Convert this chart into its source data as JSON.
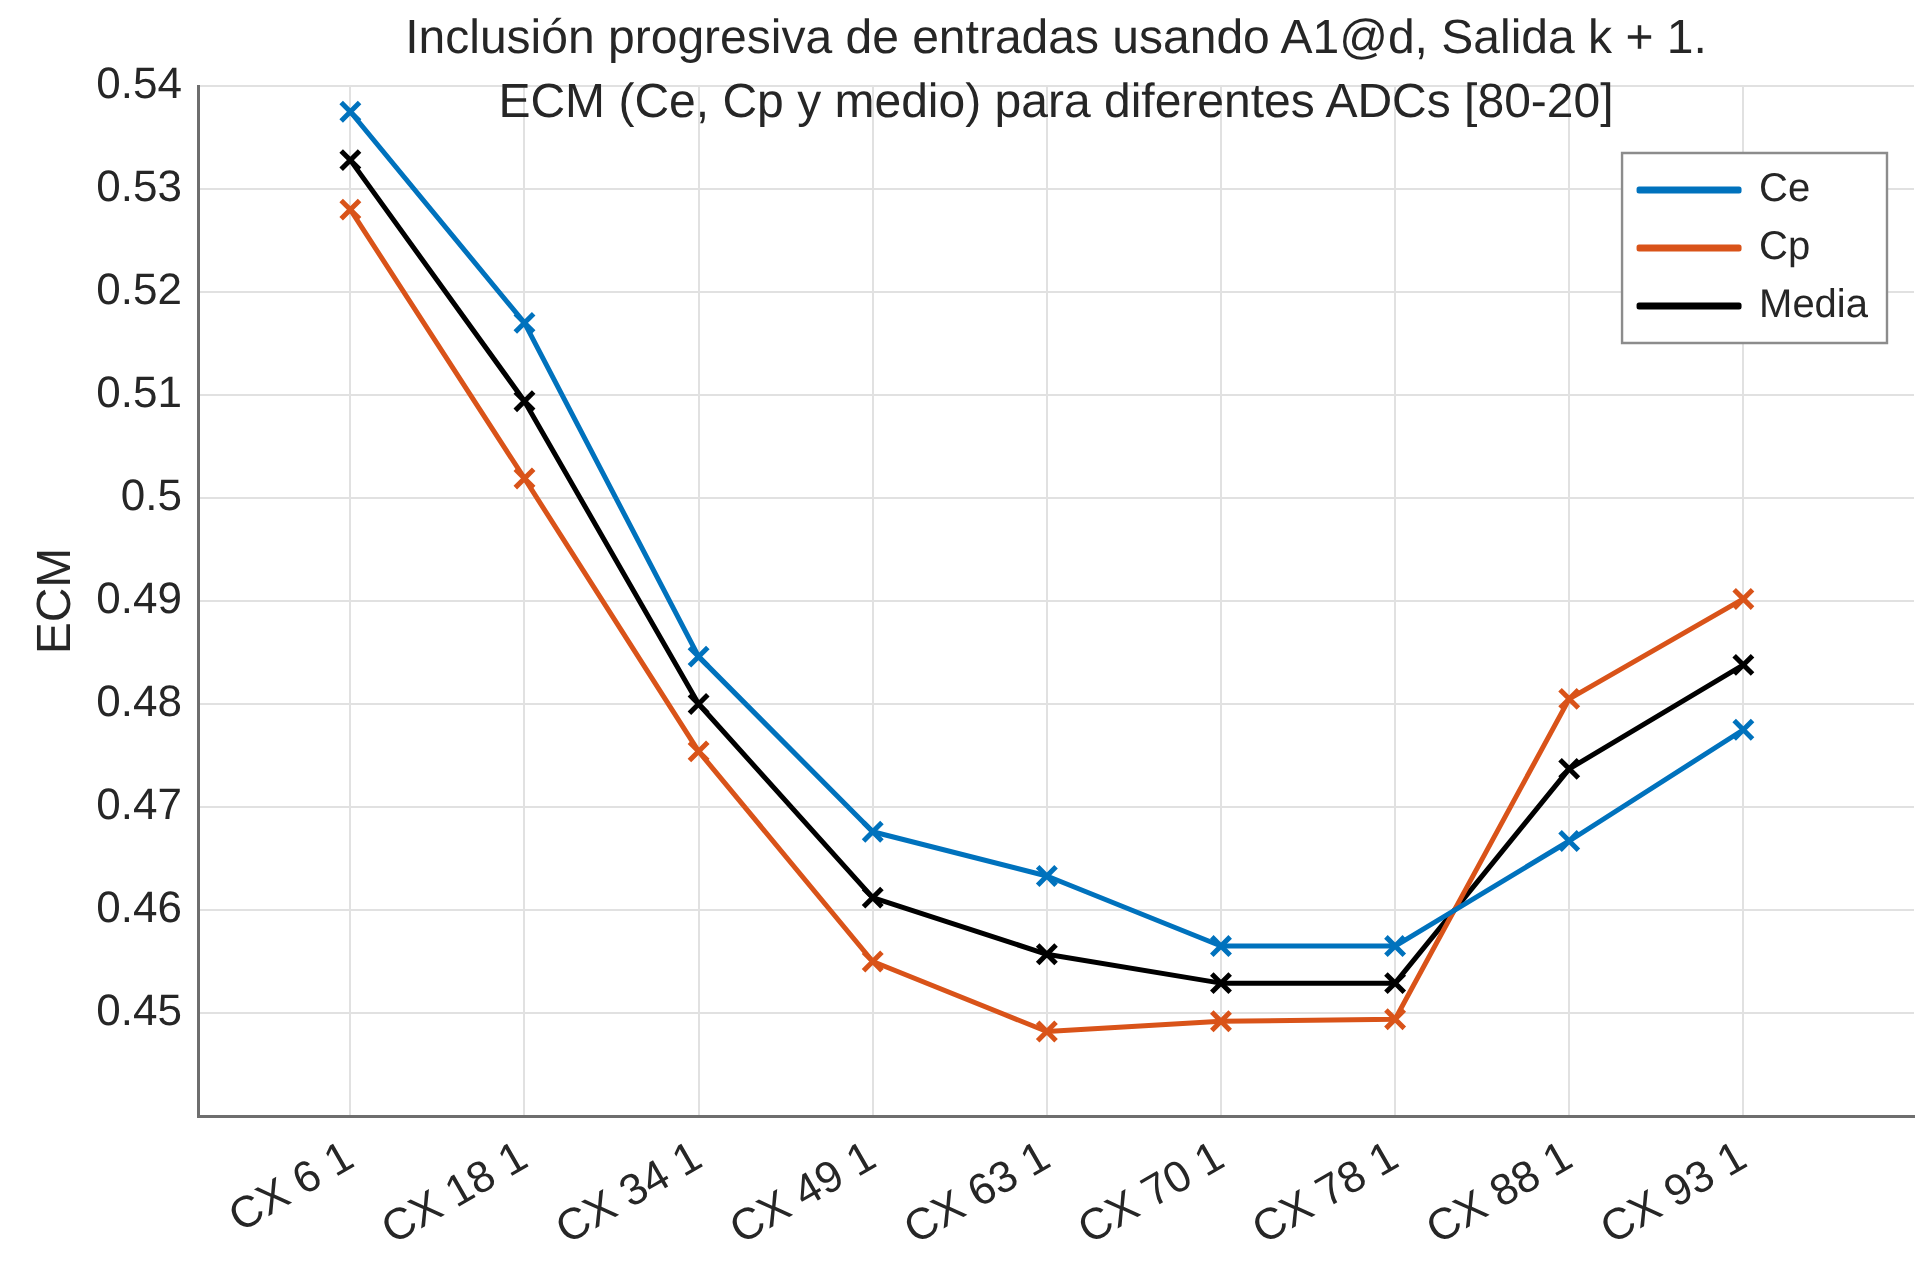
{
  "chart_data": {
    "type": "line",
    "title": "Inclusión progresiva de entradas usando A1@d, Salida k + 1.\nECM (Ce, Cp y medio) para diferentes ADCs [80-20]",
    "ylabel": "ECM",
    "categories": [
      "CX 6 1",
      "CX 18 1",
      "CX 34 1",
      "CX 49 1",
      "CX 63 1",
      "CX 70 1",
      "CX 78 1",
      "CX 88 1",
      "CX 93 1"
    ],
    "series": [
      {
        "name": "Ce",
        "color": "#0072bd",
        "values": [
          0.5375,
          0.517,
          0.4846,
          0.4676,
          0.4633,
          0.4565,
          0.4565,
          0.4667,
          0.4775
        ]
      },
      {
        "name": "Cp",
        "color": "#d95319",
        "values": [
          0.528,
          0.5019,
          0.4754,
          0.455,
          0.4482,
          0.4492,
          0.4494,
          0.4805,
          0.4902
        ]
      },
      {
        "name": "Media",
        "color": "#000000",
        "values": [
          0.5328,
          0.5094,
          0.48,
          0.4612,
          0.4557,
          0.4529,
          0.4529,
          0.4737,
          0.4838
        ]
      }
    ],
    "ylim": [
      0.44,
      0.54
    ],
    "yticks": [
      0.45,
      0.46,
      0.47,
      0.48,
      0.49,
      0.5,
      0.51,
      0.52,
      0.53,
      0.54
    ],
    "grid": true,
    "legend": "top right",
    "marker": "cross",
    "line_style": "solid"
  }
}
